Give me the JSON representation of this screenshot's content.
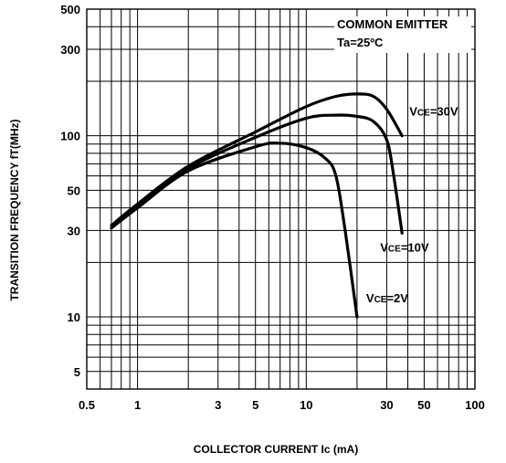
{
  "chart_data": {
    "type": "line",
    "xlabel": "COLLECTOR CURRENT Ic (mA)",
    "ylabel": "TRANSITION FREQUENCY fT(MHz)",
    "x_scale": "log",
    "y_scale": "log",
    "xlim": [
      0.5,
      100
    ],
    "ylim": [
      4,
      500
    ],
    "x_ticks": [
      {
        "value": 0.5,
        "label": "0.5"
      },
      {
        "value": 1,
        "label": "1"
      },
      {
        "value": 3,
        "label": "3"
      },
      {
        "value": 5,
        "label": "5"
      },
      {
        "value": 10,
        "label": "10"
      },
      {
        "value": 30,
        "label": "30"
      },
      {
        "value": 50,
        "label": "50"
      },
      {
        "value": 100,
        "label": "100"
      }
    ],
    "y_ticks": [
      {
        "value": 5,
        "label": "5"
      },
      {
        "value": 10,
        "label": "10"
      },
      {
        "value": 30,
        "label": "30"
      },
      {
        "value": 50,
        "label": "50"
      },
      {
        "value": 100,
        "label": "100"
      },
      {
        "value": 300,
        "label": "300"
      },
      {
        "value": 500,
        "label": "500"
      }
    ],
    "grid": true,
    "annotations": [
      "COMMON EMITTER",
      "Ta=25ºC"
    ],
    "series": [
      {
        "name": "VCE=30V",
        "name_main": "V",
        "name_sub": "CE",
        "name_rest": "=30V",
        "x": [
          0.7,
          1,
          2,
          5,
          10,
          15,
          20,
          25,
          30,
          37
        ],
        "y": [
          32,
          42,
          68,
          105,
          145,
          165,
          170,
          165,
          140,
          100
        ]
      },
      {
        "name": "VCE=10V",
        "name_main": "V",
        "name_sub": "CE",
        "name_rest": "=10V",
        "x": [
          0.7,
          1,
          2,
          5,
          10,
          15,
          20,
          25,
          30,
          33,
          37
        ],
        "y": [
          31,
          41,
          66,
          98,
          125,
          130,
          128,
          120,
          95,
          60,
          29
        ]
      },
      {
        "name": "VCE=2V",
        "name_main": "V",
        "name_sub": "CE",
        "name_rest": "=2V",
        "x": [
          0.7,
          1,
          2,
          5,
          7,
          10,
          13,
          15,
          17,
          20
        ],
        "y": [
          31,
          40,
          64,
          87,
          91,
          86,
          75,
          60,
          30,
          10
        ]
      }
    ]
  }
}
